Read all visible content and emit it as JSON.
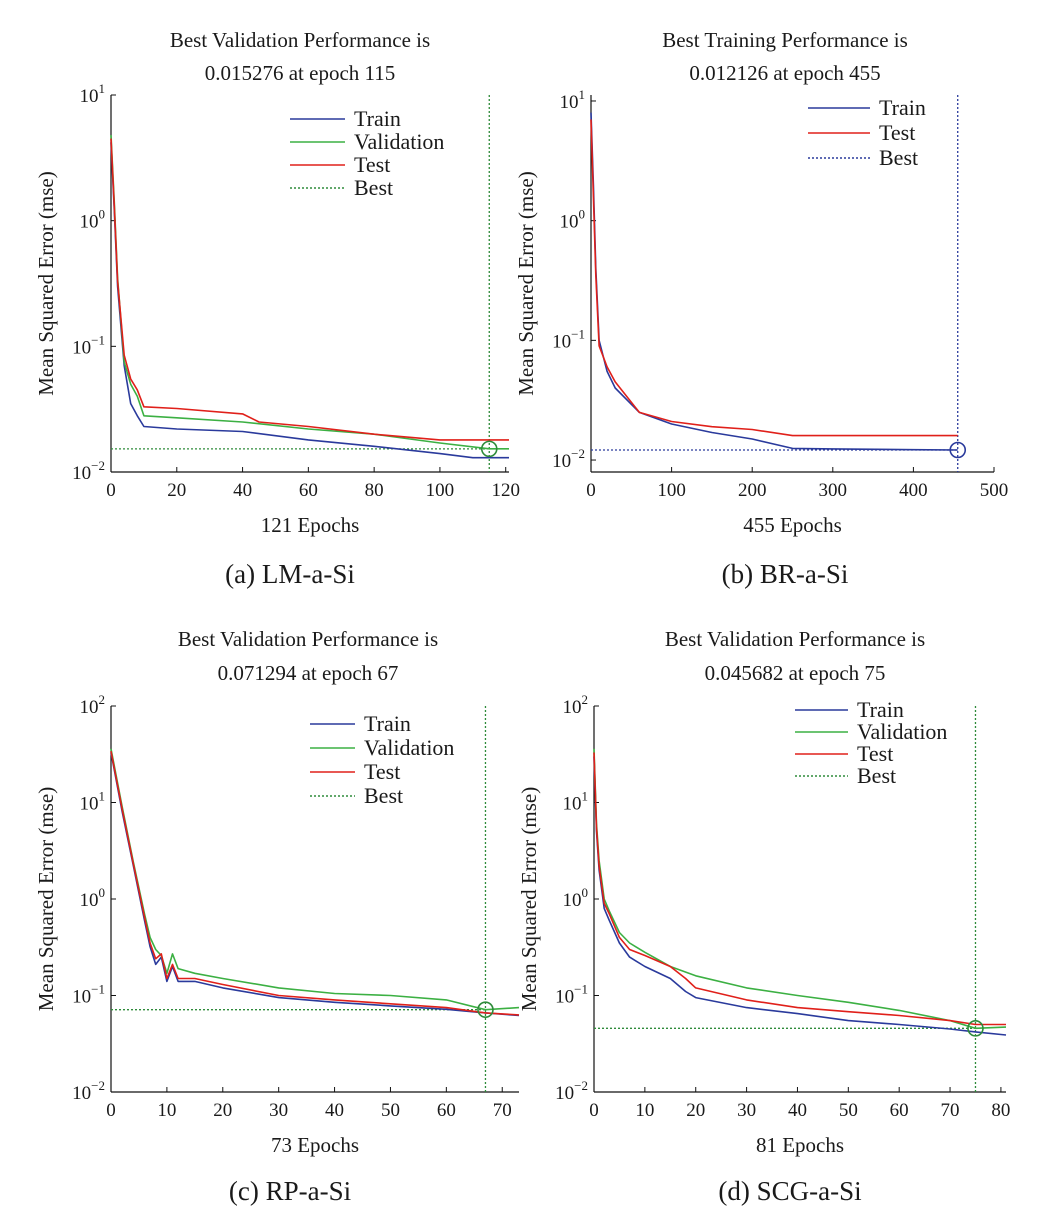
{
  "chart_data": [
    {
      "id": "a",
      "type": "line",
      "title": [
        "Best Validation Performance is",
        "0.015276 at epoch 115"
      ],
      "xlabel": "121 Epochs",
      "ylabel": "Mean Squared Error (mse)",
      "caption": "(a) LM-a-Si",
      "xlim": [
        0,
        121
      ],
      "ylim_log10": [
        -2,
        1
      ],
      "xticks": [
        0,
        20,
        40,
        60,
        80,
        100,
        120
      ],
      "xtick_labels": [
        "0",
        "20",
        "40",
        "60",
        "80",
        "100",
        "120"
      ],
      "yticks": [
        {
          "exp": -2,
          "base": "10",
          "sup": "−2"
        },
        {
          "exp": -1,
          "base": "10",
          "sup": "−1"
        },
        {
          "exp": 0,
          "base": "10",
          "sup": "0"
        },
        {
          "exp": 1,
          "base": "10",
          "sup": "1"
        }
      ],
      "legend": [
        "Train",
        "Validation",
        "Test",
        "Best"
      ],
      "best": {
        "epoch": 115,
        "value": 0.015276,
        "color": "#2e8b3a"
      },
      "series": [
        {
          "name": "Train",
          "color": "#2a3a9c",
          "x": [
            0,
            1,
            2,
            4,
            6,
            8,
            10,
            20,
            40,
            60,
            80,
            100,
            110,
            121
          ],
          "y": [
            4.2,
            1.2,
            0.3,
            0.07,
            0.035,
            0.028,
            0.023,
            0.022,
            0.021,
            0.018,
            0.016,
            0.014,
            0.013,
            0.013
          ]
        },
        {
          "name": "Validation",
          "color": "#3cb043",
          "x": [
            0,
            1,
            2,
            4,
            6,
            8,
            10,
            20,
            40,
            60,
            80,
            100,
            115,
            121
          ],
          "y": [
            4.8,
            1.4,
            0.35,
            0.075,
            0.05,
            0.04,
            0.028,
            0.027,
            0.025,
            0.022,
            0.02,
            0.017,
            0.0153,
            0.0153
          ]
        },
        {
          "name": "Test",
          "color": "#e0201a",
          "x": [
            0,
            1,
            2,
            4,
            6,
            8,
            10,
            20,
            40,
            45,
            60,
            80,
            100,
            121
          ],
          "y": [
            4.5,
            1.3,
            0.33,
            0.085,
            0.055,
            0.045,
            0.033,
            0.032,
            0.029,
            0.025,
            0.023,
            0.02,
            0.018,
            0.018
          ]
        }
      ]
    },
    {
      "id": "b",
      "type": "line",
      "title": [
        "Best Training Performance is",
        "0.012126 at epoch 455"
      ],
      "xlabel": "455 Epochs",
      "ylabel": "Mean Squared Error (mse)",
      "caption": "(b) BR-a-Si",
      "xlim": [
        0,
        500
      ],
      "ylim_log10": [
        -2.1,
        1.05
      ],
      "xticks": [
        0,
        100,
        200,
        300,
        400,
        500
      ],
      "xtick_labels": [
        "0",
        "100",
        "200",
        "300",
        "400",
        "500"
      ],
      "yticks": [
        {
          "exp": -2,
          "base": "10",
          "sup": "−2"
        },
        {
          "exp": -1,
          "base": "10",
          "sup": "−1"
        },
        {
          "exp": 0,
          "base": "10",
          "sup": "0"
        },
        {
          "exp": 1,
          "base": "10",
          "sup": "1"
        }
      ],
      "legend": [
        "Train",
        "Test",
        "Best"
      ],
      "best": {
        "epoch": 455,
        "value": 0.012126,
        "color": "#2a3a9c"
      },
      "series": [
        {
          "name": "Train",
          "color": "#2a3a9c",
          "x": [
            0,
            3,
            6,
            10,
            20,
            30,
            60,
            100,
            150,
            200,
            250,
            300,
            400,
            455
          ],
          "y": [
            8,
            2,
            0.4,
            0.1,
            0.055,
            0.04,
            0.025,
            0.02,
            0.017,
            0.015,
            0.0125,
            0.0124,
            0.0122,
            0.012126
          ]
        },
        {
          "name": "Test",
          "color": "#e0201a",
          "x": [
            0,
            3,
            6,
            10,
            20,
            30,
            60,
            100,
            150,
            200,
            250,
            300,
            400,
            455
          ],
          "y": [
            7,
            1.6,
            0.35,
            0.09,
            0.06,
            0.045,
            0.025,
            0.021,
            0.019,
            0.018,
            0.016,
            0.016,
            0.016,
            0.016
          ]
        }
      ]
    },
    {
      "id": "c",
      "type": "line",
      "title": [
        "Best Validation Performance is",
        "0.071294 at epoch 67"
      ],
      "xlabel": "73 Epochs",
      "ylabel": "Mean Squared Error (mse)",
      "caption": "(c) RP-a-Si",
      "xlim": [
        0,
        73
      ],
      "ylim_log10": [
        -2,
        2
      ],
      "xticks": [
        0,
        10,
        20,
        30,
        40,
        50,
        60,
        70
      ],
      "xtick_labels": [
        "0",
        "10",
        "20",
        "30",
        "40",
        "50",
        "60",
        "70"
      ],
      "yticks": [
        {
          "exp": -2,
          "base": "10",
          "sup": "−2"
        },
        {
          "exp": -1,
          "base": "10",
          "sup": "−1"
        },
        {
          "exp": 0,
          "base": "10",
          "sup": "0"
        },
        {
          "exp": 1,
          "base": "10",
          "sup": "1"
        },
        {
          "exp": 2,
          "base": "10",
          "sup": "2"
        }
      ],
      "legend": [
        "Train",
        "Validation",
        "Test",
        "Best"
      ],
      "best": {
        "epoch": 67,
        "value": 0.071294,
        "color": "#2e8b3a"
      },
      "series": [
        {
          "name": "Train",
          "color": "#2a3a9c",
          "x": [
            0,
            2,
            4,
            6,
            7,
            8,
            9,
            10,
            11,
            12,
            15,
            20,
            30,
            40,
            50,
            60,
            67,
            73
          ],
          "y": [
            33,
            8,
            2.2,
            0.6,
            0.32,
            0.21,
            0.25,
            0.14,
            0.2,
            0.14,
            0.14,
            0.12,
            0.095,
            0.085,
            0.078,
            0.072,
            0.066,
            0.062
          ]
        },
        {
          "name": "Validation",
          "color": "#3cb043",
          "x": [
            0,
            2,
            4,
            6,
            7,
            8,
            9,
            10,
            11,
            12,
            15,
            20,
            30,
            40,
            50,
            60,
            67,
            73
          ],
          "y": [
            36,
            9,
            2.4,
            0.7,
            0.4,
            0.3,
            0.26,
            0.17,
            0.27,
            0.19,
            0.17,
            0.15,
            0.12,
            0.105,
            0.1,
            0.09,
            0.071294,
            0.075
          ]
        },
        {
          "name": "Test",
          "color": "#e0201a",
          "x": [
            0,
            2,
            4,
            6,
            7,
            8,
            9,
            10,
            11,
            12,
            15,
            20,
            30,
            40,
            50,
            60,
            67,
            73
          ],
          "y": [
            34,
            8.5,
            2.3,
            0.65,
            0.35,
            0.24,
            0.27,
            0.15,
            0.21,
            0.15,
            0.15,
            0.13,
            0.1,
            0.09,
            0.082,
            0.075,
            0.066,
            0.063
          ]
        }
      ]
    },
    {
      "id": "d",
      "type": "line",
      "title": [
        "Best Validation Performance is",
        "0.045682 at epoch 75"
      ],
      "xlabel": "81 Epochs",
      "ylabel": "Mean Squared Error (mse)",
      "caption": "(d) SCG-a-Si",
      "xlim": [
        0,
        81
      ],
      "ylim_log10": [
        -2,
        2
      ],
      "xticks": [
        0,
        10,
        20,
        30,
        40,
        50,
        60,
        70,
        80
      ],
      "xtick_labels": [
        "0",
        "10",
        "20",
        "30",
        "40",
        "50",
        "60",
        "70",
        "80"
      ],
      "yticks": [
        {
          "exp": -2,
          "base": "10",
          "sup": "−2"
        },
        {
          "exp": -1,
          "base": "10",
          "sup": "−1"
        },
        {
          "exp": 0,
          "base": "10",
          "sup": "0"
        },
        {
          "exp": 1,
          "base": "10",
          "sup": "1"
        },
        {
          "exp": 2,
          "base": "10",
          "sup": "2"
        }
      ],
      "legend": [
        "Train",
        "Validation",
        "Test",
        "Best"
      ],
      "best": {
        "epoch": 75,
        "value": 0.045682,
        "color": "#2e8b3a"
      },
      "series": [
        {
          "name": "Train",
          "color": "#2a3a9c",
          "x": [
            0,
            0.5,
            1,
            2,
            3,
            5,
            7,
            10,
            15,
            18,
            20,
            30,
            40,
            50,
            60,
            70,
            75,
            81
          ],
          "y": [
            30,
            5,
            2,
            0.8,
            0.6,
            0.35,
            0.25,
            0.2,
            0.15,
            0.11,
            0.095,
            0.075,
            0.065,
            0.055,
            0.05,
            0.045,
            0.042,
            0.039
          ]
        },
        {
          "name": "Validation",
          "color": "#3cb043",
          "x": [
            0,
            0.5,
            1,
            2,
            3,
            5,
            7,
            10,
            15,
            20,
            30,
            40,
            50,
            60,
            70,
            75,
            81
          ],
          "y": [
            36,
            6,
            2.5,
            1.0,
            0.75,
            0.45,
            0.35,
            0.28,
            0.2,
            0.16,
            0.12,
            0.1,
            0.085,
            0.07,
            0.055,
            0.045682,
            0.047
          ]
        },
        {
          "name": "Test",
          "color": "#e0201a",
          "x": [
            0,
            0.5,
            1,
            2,
            3,
            5,
            7,
            10,
            15,
            18,
            20,
            30,
            40,
            50,
            60,
            70,
            75,
            81
          ],
          "y": [
            33,
            5.5,
            2.2,
            0.9,
            0.7,
            0.4,
            0.3,
            0.26,
            0.2,
            0.15,
            0.12,
            0.09,
            0.075,
            0.068,
            0.062,
            0.055,
            0.05,
            0.05
          ]
        }
      ]
    }
  ]
}
